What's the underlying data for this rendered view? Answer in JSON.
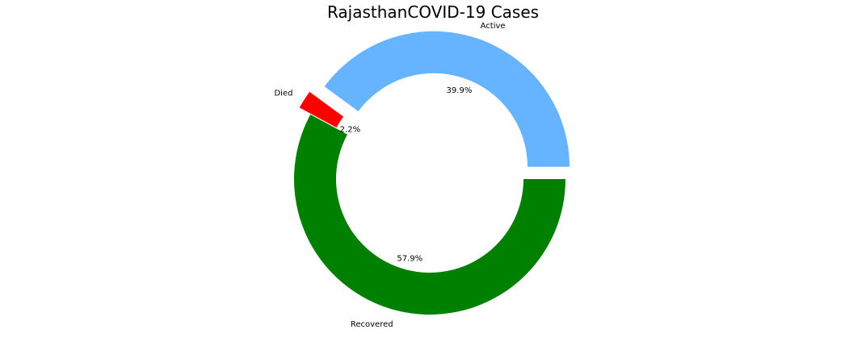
{
  "chart_data": {
    "type": "pie",
    "title": "RajasthanCOVID-19 Cases",
    "categories": [
      "Active",
      "Died",
      "Recovered"
    ],
    "values": [
      39.9,
      2.2,
      57.9
    ],
    "percent_labels": [
      "39.9%",
      "2.2%",
      "57.9%"
    ],
    "colors": [
      "#66b3ff",
      "#ff0000",
      "#008000"
    ],
    "exploded": [
      true,
      true,
      false
    ],
    "donut": true,
    "legend": "none"
  }
}
